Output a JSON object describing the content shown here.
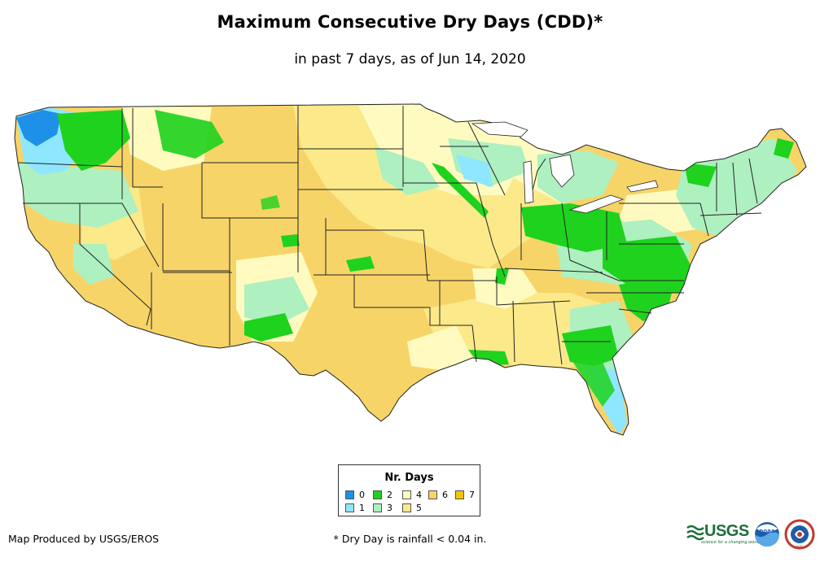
{
  "title": "Maximum Consecutive Dry Days (CDD)*",
  "subtitle": "in past 7 days, as of Jun 14, 2020",
  "legend": {
    "title": "Nr. Days",
    "items": [
      {
        "label": "0",
        "color": "#1e90e8"
      },
      {
        "label": "1",
        "color": "#8fe6ff"
      },
      {
        "label": "2",
        "color": "#1ed21e"
      },
      {
        "label": "3",
        "color": "#aef0c0"
      },
      {
        "label": "4",
        "color": "#fffbc0"
      },
      {
        "label": "5",
        "color": "#fbe98a"
      },
      {
        "label": "6",
        "color": "#f7d468"
      },
      {
        "label": "7",
        "color": "#f5c400"
      }
    ]
  },
  "credit": "Map Produced by USGS/EROS",
  "footnote": "* Dry Day is rainfall < 0.04 in.",
  "logos": {
    "usgs": "USGS",
    "usgs_tagline": "science for a changing world",
    "noaa": "noaa",
    "nws": "NWS"
  },
  "colors": {
    "border": "#222222",
    "dry6": "#f7d468",
    "dry5": "#fbe98a",
    "dry4": "#fffbc0",
    "wet3": "#aef0c0",
    "wet2": "#1ed21e",
    "wet1": "#8fe6ff",
    "wet0": "#1e90e8"
  }
}
